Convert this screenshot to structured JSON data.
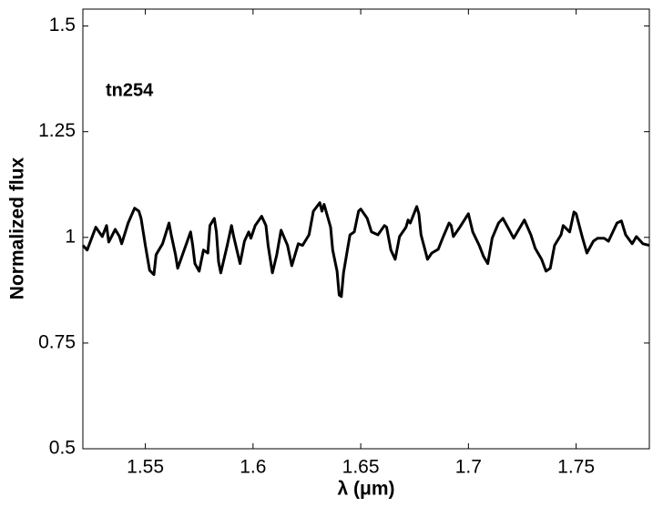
{
  "chart_data": {
    "type": "line",
    "xlabel": "λ (μm)",
    "ylabel": "Normalized flux",
    "annotation": "tn254",
    "xlim": [
      1.521,
      1.784
    ],
    "ylim": [
      0.5,
      1.54
    ],
    "xticks": [
      1.55,
      1.6,
      1.65,
      1.7,
      1.75
    ],
    "yticks": [
      0.5,
      0.75,
      1,
      1.25,
      1.5
    ],
    "series": [
      {
        "color": "#000000",
        "x": [
          1.521,
          1.523,
          1.527,
          1.53,
          1.532,
          1.533,
          1.536,
          1.538,
          1.539,
          1.542,
          1.545,
          1.547,
          1.548,
          1.55,
          1.552,
          1.554,
          1.555,
          1.558,
          1.561,
          1.562,
          1.564,
          1.565,
          1.568,
          1.571,
          1.572,
          1.573,
          1.575,
          1.577,
          1.579,
          1.58,
          1.582,
          1.583,
          1.584,
          1.585,
          1.588,
          1.59,
          1.591,
          1.594,
          1.596,
          1.598,
          1.599,
          1.601,
          1.604,
          1.606,
          1.607,
          1.609,
          1.611,
          1.613,
          1.616,
          1.618,
          1.621,
          1.623,
          1.626,
          1.628,
          1.631,
          1.632,
          1.633,
          1.636,
          1.637,
          1.639,
          1.64,
          1.641,
          1.642,
          1.644,
          1.645,
          1.647,
          1.649,
          1.65,
          1.653,
          1.655,
          1.658,
          1.661,
          1.662,
          1.664,
          1.666,
          1.668,
          1.671,
          1.672,
          1.673,
          1.676,
          1.677,
          1.678,
          1.681,
          1.683,
          1.686,
          1.688,
          1.691,
          1.692,
          1.693,
          1.696,
          1.7,
          1.702,
          1.705,
          1.707,
          1.709,
          1.711,
          1.714,
          1.716,
          1.719,
          1.721,
          1.724,
          1.726,
          1.729,
          1.731,
          1.734,
          1.736,
          1.738,
          1.74,
          1.743,
          1.744,
          1.747,
          1.749,
          1.75,
          1.753,
          1.755,
          1.758,
          1.76,
          1.763,
          1.765,
          1.769,
          1.771,
          1.773,
          1.776,
          1.778,
          1.781,
          1.784
        ],
        "values": [
          0.981,
          0.97,
          1.024,
          1.002,
          1.028,
          0.989,
          1.019,
          1.002,
          0.985,
          1.034,
          1.069,
          1.062,
          1.045,
          0.981,
          0.922,
          0.912,
          0.959,
          0.985,
          1.034,
          1.006,
          0.959,
          0.927,
          0.97,
          1.013,
          0.981,
          0.938,
          0.92,
          0.97,
          0.963,
          1.028,
          1.045,
          1.013,
          0.942,
          0.916,
          0.981,
          1.028,
          1.002,
          0.938,
          0.991,
          1.013,
          0.998,
          1.028,
          1.05,
          1.028,
          0.981,
          0.916,
          0.959,
          1.017,
          0.981,
          0.933,
          0.985,
          0.981,
          1.006,
          1.062,
          1.082,
          1.062,
          1.078,
          1.024,
          0.97,
          0.92,
          0.864,
          0.86,
          0.916,
          0.976,
          1.006,
          1.013,
          1.062,
          1.067,
          1.045,
          1.013,
          1.006,
          1.028,
          1.024,
          0.97,
          0.948,
          1.002,
          1.024,
          1.041,
          1.034,
          1.073,
          1.056,
          1.006,
          0.948,
          0.963,
          0.972,
          0.998,
          1.034,
          1.028,
          1.002,
          1.024,
          1.056,
          1.013,
          0.981,
          0.955,
          0.938,
          0.998,
          1.034,
          1.045,
          1.017,
          0.998,
          1.024,
          1.041,
          1.006,
          0.974,
          0.948,
          0.92,
          0.927,
          0.981,
          1.006,
          1.028,
          1.013,
          1.06,
          1.056,
          0.998,
          0.963,
          0.991,
          0.998,
          0.998,
          0.991,
          1.034,
          1.039,
          1.006,
          0.985,
          1.002,
          0.985,
          0.981
        ]
      }
    ]
  }
}
